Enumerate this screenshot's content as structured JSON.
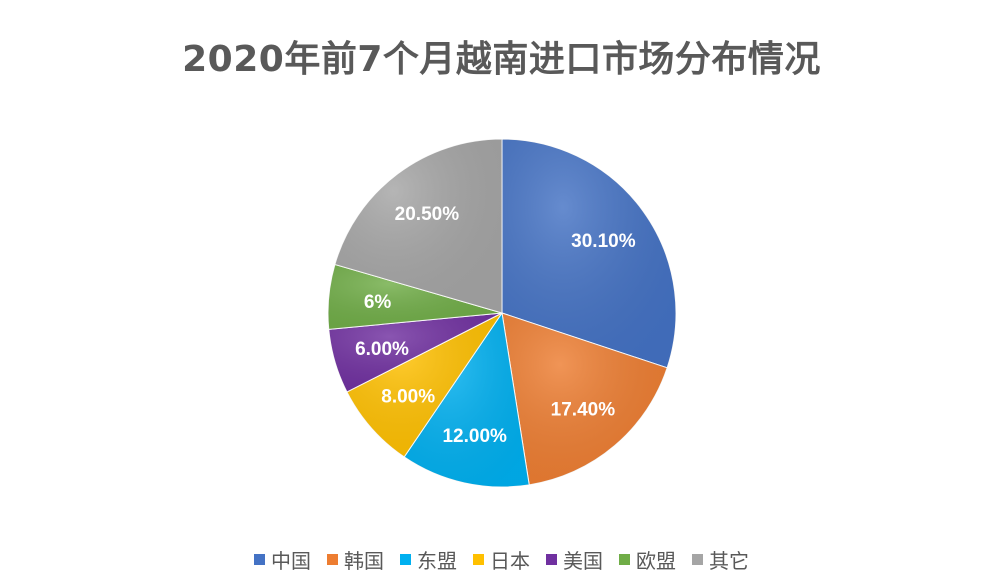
{
  "chart_data": {
    "type": "pie",
    "title": "2020年前7个月越南进口市场分布情况",
    "slices": [
      {
        "name": "中国",
        "value": 30.1,
        "label": "30.10%",
        "color": "#4472C4"
      },
      {
        "name": "韩国",
        "value": 17.4,
        "label": "17.40%",
        "color": "#ED7D31"
      },
      {
        "name": "东盟",
        "value": 12.0,
        "label": "12.00%",
        "color": "#00B0F0"
      },
      {
        "name": "日本",
        "value": 8.0,
        "label": "8.00%",
        "color": "#FFC000"
      },
      {
        "name": "美国",
        "value": 6.0,
        "label": "6.00%",
        "color": "#7030A0"
      },
      {
        "name": "欧盟",
        "value": 6.0,
        "label": "6%",
        "color": "#70AD47"
      },
      {
        "name": "其它",
        "value": 20.5,
        "label": "20.50%",
        "color": "#A5A5A5"
      }
    ],
    "start_angle": "12 o'clock",
    "direction": "clockwise",
    "legend_position": "bottom"
  }
}
